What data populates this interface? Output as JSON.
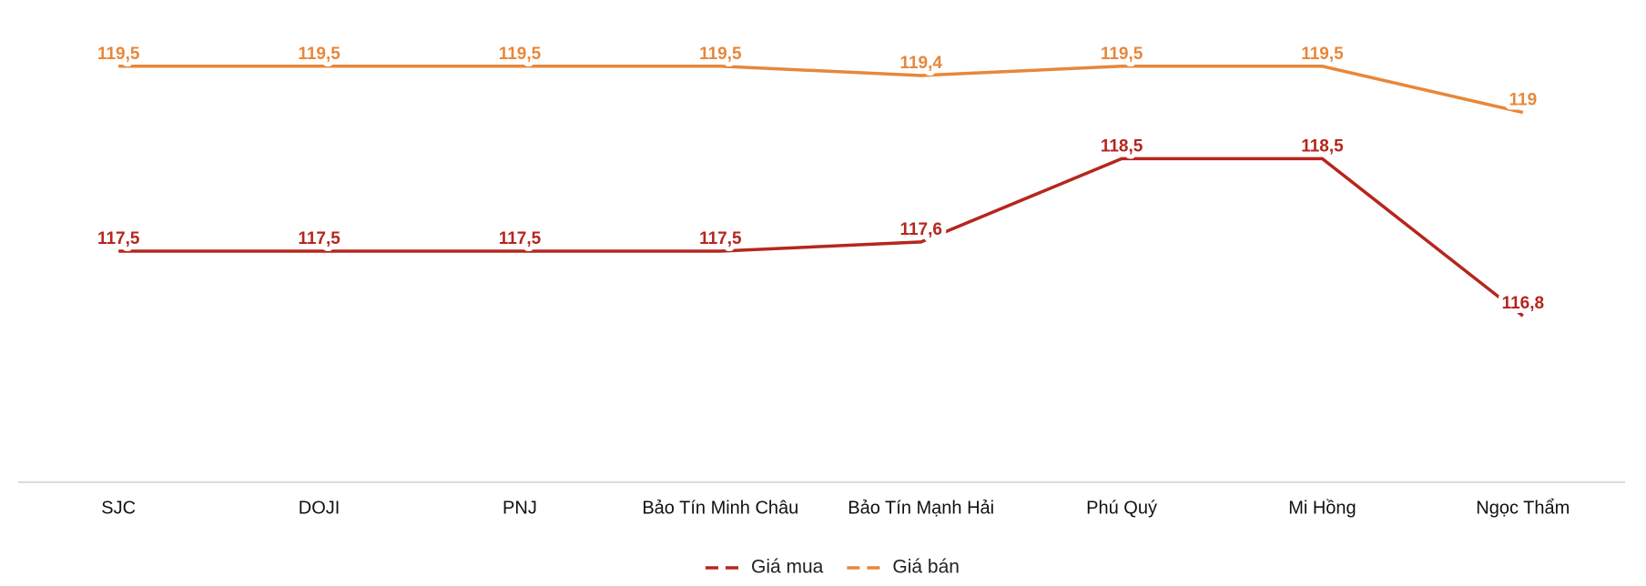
{
  "chart_data": {
    "type": "line",
    "categories": [
      "SJC",
      "DOJI",
      "PNJ",
      "Bảo Tín Minh Châu",
      "Bảo Tín Mạnh Hải",
      "Phú Quý",
      "Mi Hồng",
      "Ngọc Thẩm"
    ],
    "series": [
      {
        "name": "Giá mua",
        "color": "#b5261e",
        "values": [
          117.5,
          117.5,
          117.5,
          117.5,
          117.6,
          118.5,
          118.5,
          116.8
        ],
        "value_labels": [
          "117,5",
          "117,5",
          "117,5",
          "117,5",
          "117,6",
          "118,5",
          "118,5",
          "116,8"
        ]
      },
      {
        "name": "Giá bán",
        "color": "#e8873a",
        "values": [
          119.5,
          119.5,
          119.5,
          119.5,
          119.4,
          119.5,
          119.5,
          119
        ],
        "value_labels": [
          "119,5",
          "119,5",
          "119,5",
          "119,5",
          "119,4",
          "119,5",
          "119,5",
          "119"
        ]
      }
    ],
    "ylim": [
      115,
      120
    ]
  }
}
